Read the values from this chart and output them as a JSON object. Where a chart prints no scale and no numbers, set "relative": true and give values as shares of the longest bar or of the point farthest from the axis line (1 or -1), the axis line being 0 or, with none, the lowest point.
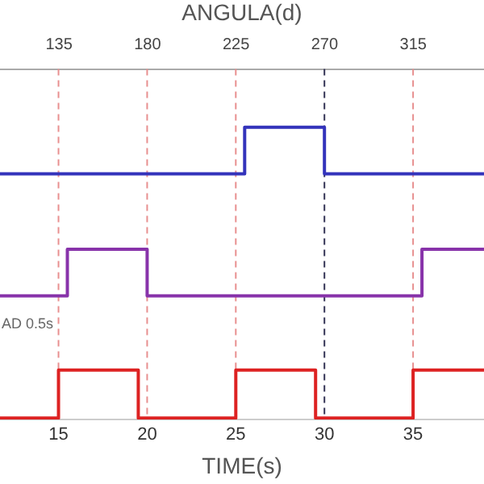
{
  "chart_data": {
    "type": "step",
    "relative": true,
    "xlabel": "TIME(s)",
    "x2label": "ANGULA(d)",
    "xlim": [
      11.7,
      39
    ],
    "xticks": [
      15,
      20,
      25,
      30,
      35
    ],
    "x2lim": [
      105,
      351
    ],
    "x2ticks": [
      135,
      180,
      225,
      270,
      315
    ],
    "series": [
      {
        "color": "#3333bb",
        "x": [
          11.7,
          25.5,
          30,
          39
        ],
        "values": [
          0.84,
          1,
          0.84,
          0.84
        ]
      },
      {
        "color": "#8833aa",
        "x": [
          11.7,
          15.5,
          20,
          35.5,
          39
        ],
        "values": [
          0.42,
          0.58,
          0.42,
          0.58,
          0.58
        ]
      },
      {
        "color": "#dd2222",
        "x": [
          11.7,
          15,
          19.5,
          25,
          29.5,
          35,
          39
        ],
        "values": [
          0,
          0.165,
          0,
          0.165,
          0,
          0.165,
          0.165
        ]
      }
    ],
    "ref_lines": [
      {
        "axis": "x",
        "value": 15,
        "color": "#e89090",
        "line_style": "dashed"
      },
      {
        "axis": "x",
        "value": 20,
        "color": "#e89090",
        "line_style": "dashed"
      },
      {
        "axis": "x",
        "value": 25,
        "color": "#e89090",
        "line_style": "dashed"
      },
      {
        "axis": "x",
        "value": 30,
        "color": "#333355",
        "line_style": "dashed"
      },
      {
        "axis": "x",
        "value": 35,
        "color": "#e89090",
        "line_style": "dashed"
      }
    ],
    "annotations": [
      "AD 0.5s"
    ],
    "grid": false,
    "legend": false,
    "marker": "none",
    "line_style": "solid"
  }
}
